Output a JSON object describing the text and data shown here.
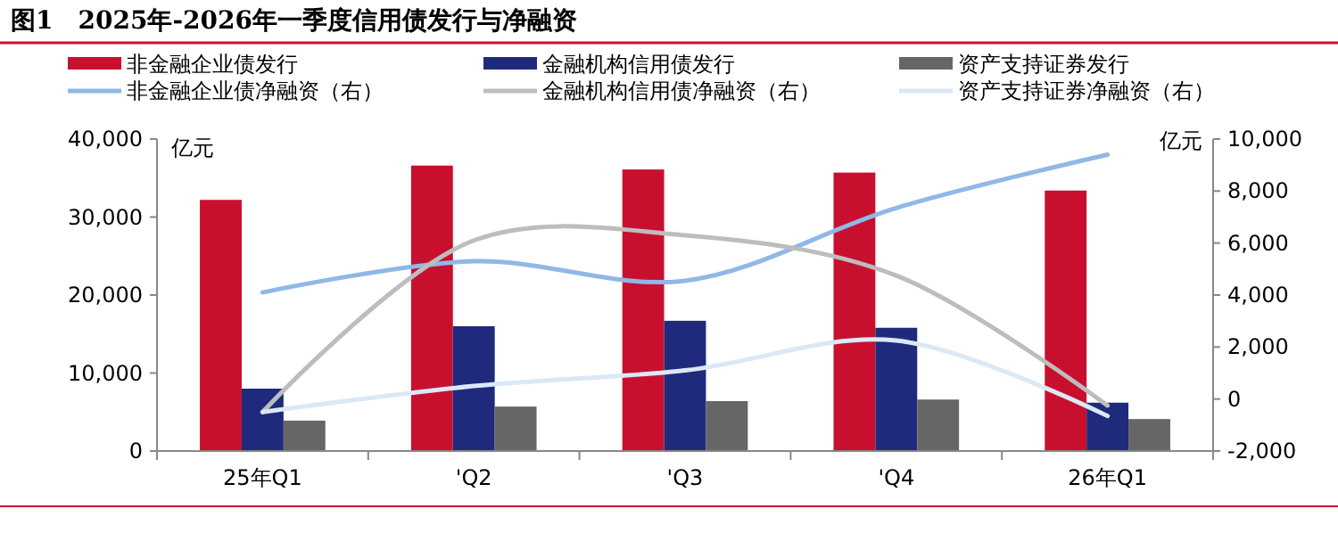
{
  "chart_data": {
    "type": "bar",
    "title": "图1　2025年-2026年一季度信用债发行与净融资",
    "ylabel": "亿元",
    "y2label": "亿元",
    "categories": [
      "25年Q1",
      "'Q2",
      "'Q3",
      "'Q4",
      "26年Q1"
    ],
    "series": [
      {
        "name": "非金融企业债发行",
        "color": "#c8102e",
        "values": [
          32200,
          36600,
          36100,
          35700,
          33400
        ]
      },
      {
        "name": "金融机构信用债发行",
        "color": "#1f2a7c",
        "values": [
          8000,
          16000,
          16700,
          15800,
          6200
        ]
      },
      {
        "name": "资产支持证券发行",
        "color": "#666666",
        "values": [
          3900,
          5700,
          6400,
          6600,
          4100
        ]
      },
      {
        "name": "非金融企业债净融资（右）",
        "type": "line",
        "axis": "y2",
        "color": "#8fb8e6",
        "values": [
          4100,
          5300,
          4550,
          7350,
          9400
        ]
      },
      {
        "name": "金融机构信用债净融资（右）",
        "type": "line",
        "axis": "y2",
        "color": "#bdbdbd",
        "values": [
          -500,
          6100,
          6300,
          4750,
          -250
        ]
      },
      {
        "name": "资产支持证券净融资（右）",
        "type": "line",
        "axis": "y2",
        "color": "#dbe8f6",
        "values": [
          -500,
          500,
          1100,
          2250,
          -650
        ]
      }
    ],
    "ylim": [
      0,
      40000
    ],
    "yticks": [
      0,
      {
        "value": 10000,
        "label": "10,000"
      },
      {
        "value": 20000,
        "label": "20,000"
      },
      {
        "value": 30000,
        "label": "30,000"
      },
      {
        "value": 40000,
        "label": "40,000"
      }
    ],
    "y2lim": [
      -2000,
      10000
    ],
    "y2ticks": [
      {
        "value": -2000,
        "label": "-2,000"
      },
      0,
      {
        "value": 2000,
        "label": "2,000"
      },
      {
        "value": 4000,
        "label": "4,000"
      },
      {
        "value": 6000,
        "label": "6,000"
      },
      {
        "value": 8000,
        "label": "8,000"
      },
      {
        "value": 10000,
        "label": "10,000"
      }
    ],
    "grid": false,
    "legend": "top"
  }
}
